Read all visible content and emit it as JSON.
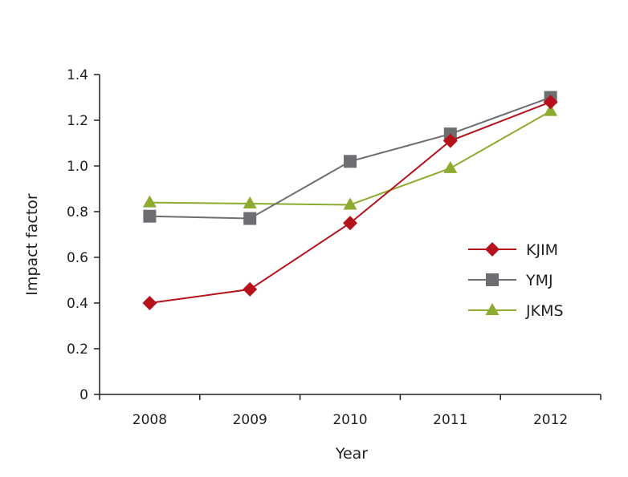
{
  "chart_data": {
    "type": "line",
    "x": [
      "2008",
      "2009",
      "2010",
      "2011",
      "2012"
    ],
    "xlabel": "Year",
    "ylabel": "Impact factor",
    "ylim": [
      0,
      1.4
    ],
    "yticks": [
      "0",
      "0.2",
      "0.4",
      "0.6",
      "0.8",
      "1.0",
      "1.2",
      "1.4"
    ],
    "grid": false,
    "legend_position": "right",
    "series": [
      {
        "name": "KJIM",
        "values": [
          0.4,
          0.46,
          0.75,
          1.11,
          1.28
        ],
        "color": "#b5121b",
        "marker": "diamond"
      },
      {
        "name": "YMJ",
        "values": [
          0.78,
          0.77,
          1.02,
          1.14,
          1.3
        ],
        "color": "#6d6e71",
        "marker": "square"
      },
      {
        "name": "JKMS",
        "values": [
          0.84,
          0.835,
          0.83,
          0.99,
          1.24
        ],
        "color": "#8dab2f",
        "marker": "triangle"
      }
    ]
  }
}
